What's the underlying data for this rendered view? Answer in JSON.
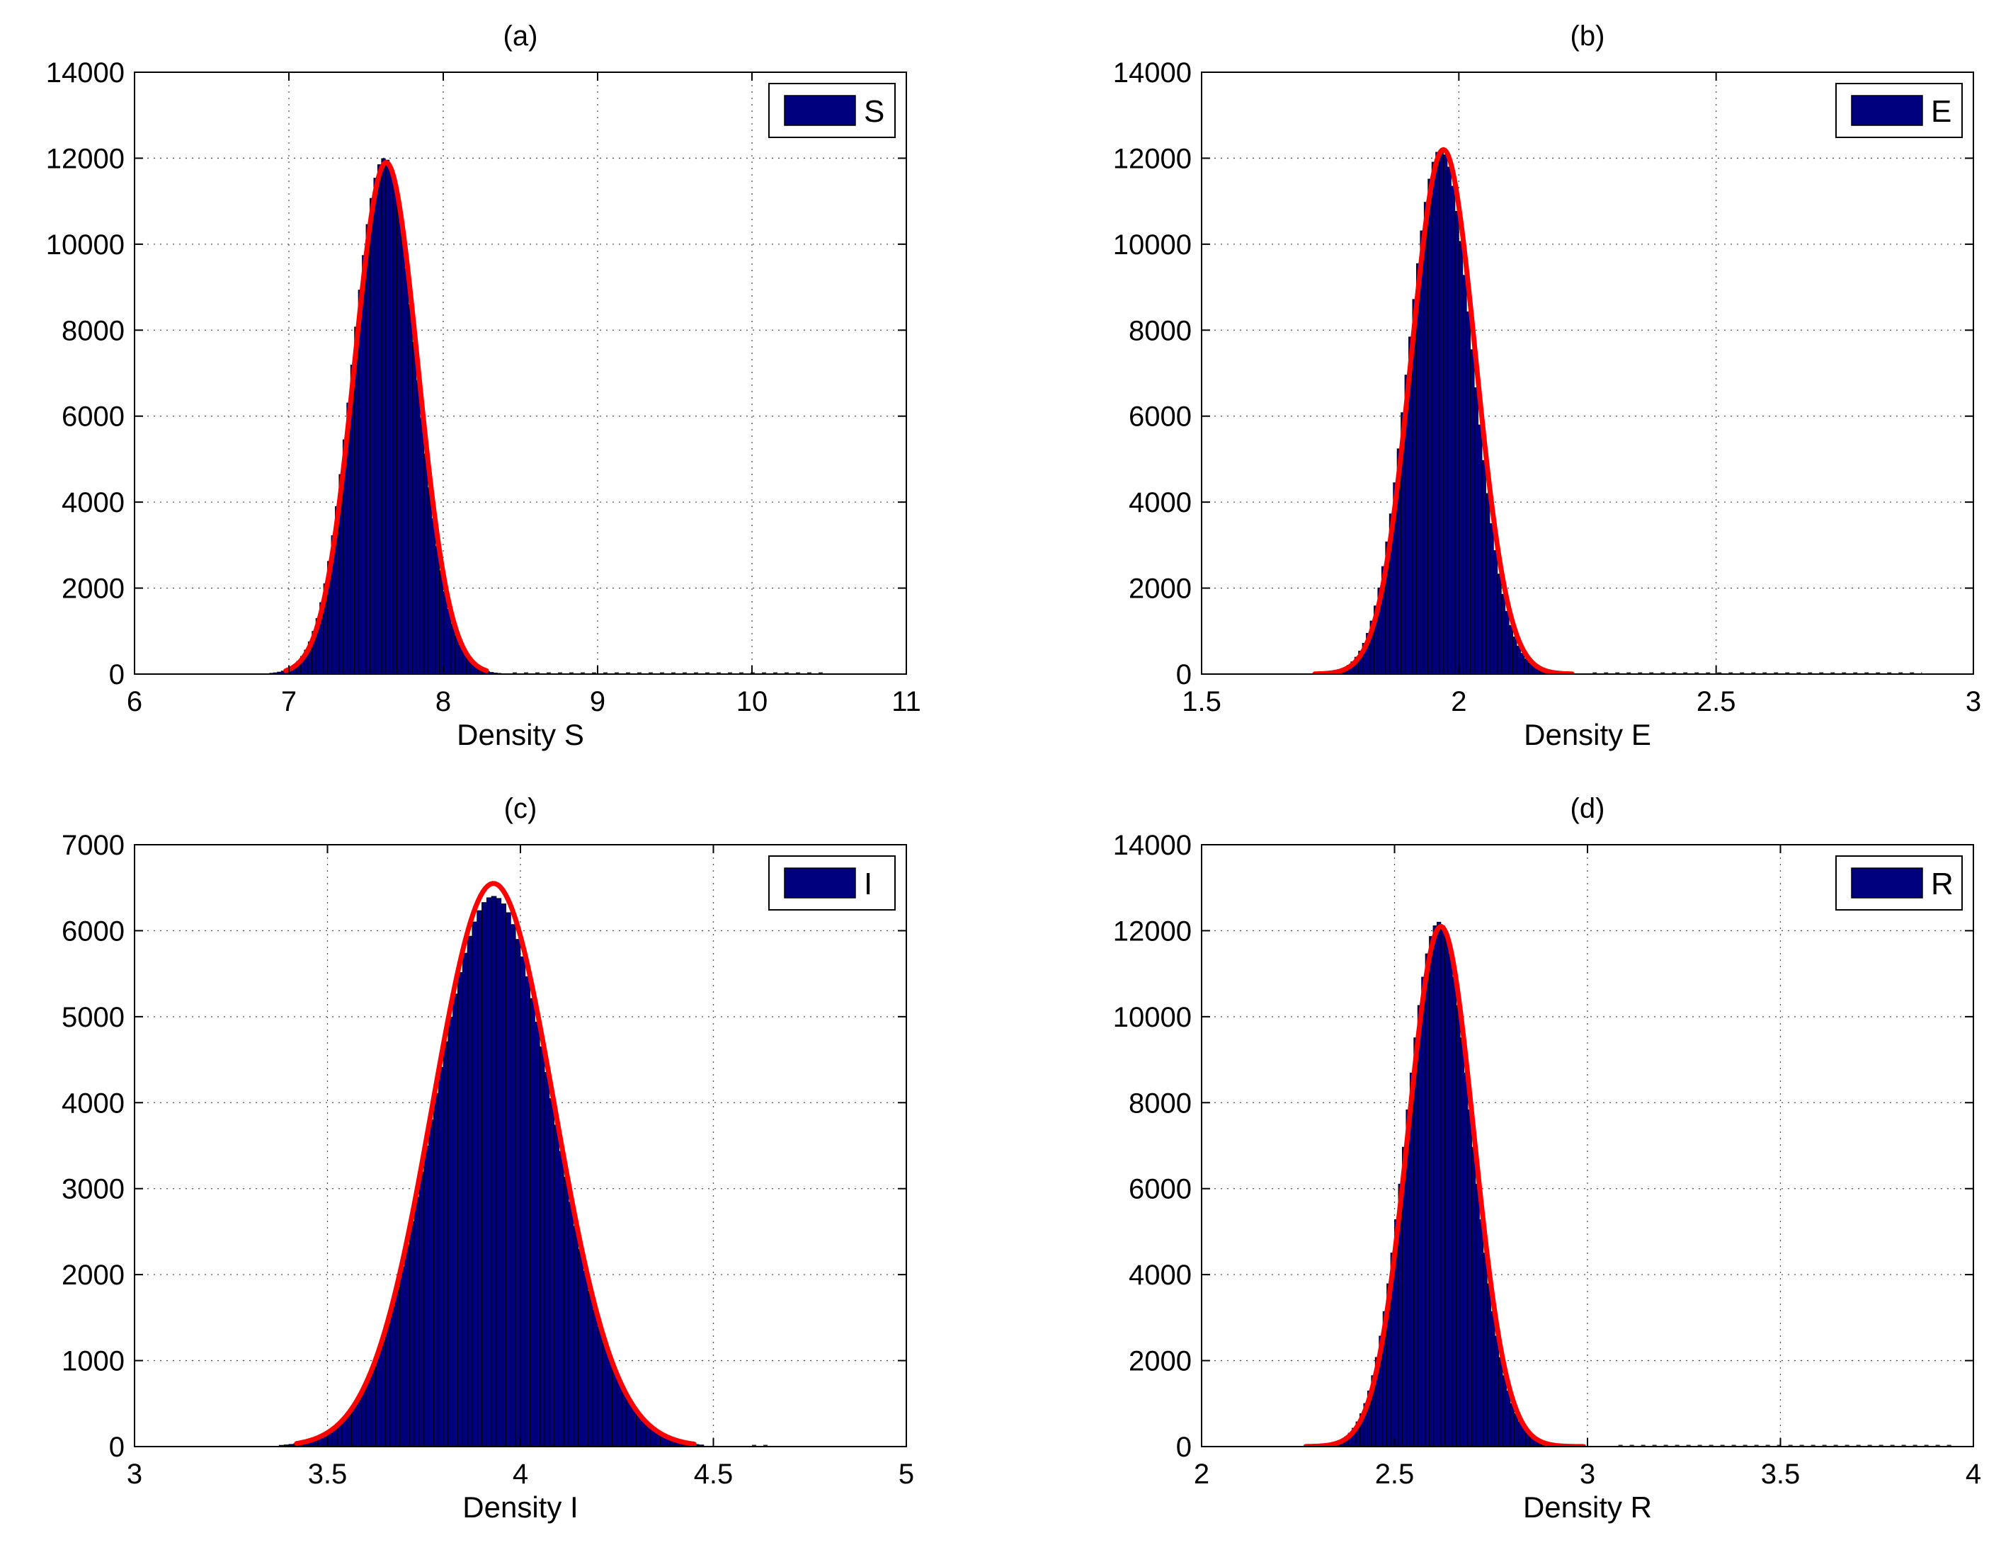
{
  "figure": {
    "background": "#ffffff",
    "bar_color": "#00007f",
    "bar_edge_color": "#000000",
    "fit_color": "#ff0000"
  },
  "chart_data": [
    {
      "type": "bar",
      "panel": "a",
      "title": "(a)",
      "xlabel": "Density S",
      "ylabel": "",
      "xlim": [
        6,
        11
      ],
      "ylim": [
        0,
        14000
      ],
      "xticks": [
        "6",
        "7",
        "8",
        "9",
        "10",
        "11"
      ],
      "yticks": [
        "0",
        "2000",
        "4000",
        "6000",
        "8000",
        "10000",
        "12000",
        "14000"
      ],
      "grid": true,
      "legend": {
        "position": "top-right",
        "entries": [
          "S"
        ]
      },
      "histogram": {
        "name": "S",
        "mean": 7.62,
        "sd": 0.205,
        "peak": 12000,
        "bin_width": 0.025,
        "range": [
          6.85,
          8.45
        ],
        "tail_to": 10.5
      },
      "fit": {
        "type": "normal",
        "mean": 7.63,
        "sd": 0.205,
        "peak": 11900,
        "range": [
          6.98,
          8.28
        ]
      }
    },
    {
      "type": "bar",
      "panel": "b",
      "title": "(b)",
      "xlabel": "Density E",
      "ylabel": "",
      "xlim": [
        1.5,
        3
      ],
      "ylim": [
        0,
        14000
      ],
      "xticks": [
        "1.5",
        "2",
        "2.5",
        "3"
      ],
      "yticks": [
        "0",
        "2000",
        "4000",
        "6000",
        "8000",
        "10000",
        "12000",
        "14000"
      ],
      "grid": true,
      "legend": {
        "position": "top-right",
        "entries": [
          "E"
        ]
      },
      "histogram": {
        "name": "E",
        "mean": 1.965,
        "sd": 0.0625,
        "peak": 12200,
        "bin_width": 0.0075,
        "range": [
          1.7,
          2.26
        ],
        "tail_to": 2.9
      },
      "fit": {
        "type": "normal",
        "mean": 1.97,
        "sd": 0.0625,
        "peak": 12200,
        "range": [
          1.72,
          2.22
        ]
      }
    },
    {
      "type": "bar",
      "panel": "c",
      "title": "(c)",
      "xlabel": "Density I",
      "ylabel": "",
      "xlim": [
        3,
        5
      ],
      "ylim": [
        0,
        7000
      ],
      "xticks": [
        "3",
        "3.5",
        "4",
        "4.5",
        "5"
      ],
      "yticks": [
        "0",
        "1000",
        "2000",
        "3000",
        "4000",
        "5000",
        "6000",
        "7000"
      ],
      "grid": true,
      "legend": {
        "position": "top-right",
        "entries": [
          "I"
        ]
      },
      "histogram": {
        "name": "I",
        "mean": 3.93,
        "sd": 0.158,
        "peak": 6400,
        "bin_width": 0.0125,
        "range": [
          3.3,
          4.6
        ],
        "tail_to": 4.65
      },
      "fit": {
        "type": "normal",
        "mean": 3.93,
        "sd": 0.158,
        "peak": 6550,
        "range": [
          3.42,
          4.45
        ]
      }
    },
    {
      "type": "bar",
      "panel": "d",
      "title": "(d)",
      "xlabel": "Density R",
      "ylabel": "",
      "xlim": [
        2,
        4
      ],
      "ylim": [
        0,
        14000
      ],
      "xticks": [
        "2",
        "2.5",
        "3",
        "3.5",
        "4"
      ],
      "yticks": [
        "0",
        "2000",
        "4000",
        "6000",
        "8000",
        "10000",
        "12000",
        "14000"
      ],
      "grid": true,
      "legend": {
        "position": "top-right",
        "entries": [
          "R"
        ]
      },
      "histogram": {
        "name": "R",
        "mean": 2.615,
        "sd": 0.085,
        "peak": 12200,
        "bin_width": 0.01,
        "range": [
          2.18,
          3.08
        ],
        "tail_to": 3.95
      },
      "fit": {
        "type": "normal",
        "mean": 2.62,
        "sd": 0.085,
        "peak": 12100,
        "range": [
          2.27,
          2.99
        ]
      }
    }
  ]
}
